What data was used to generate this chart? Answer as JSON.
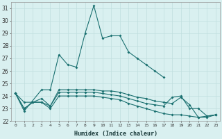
{
  "xlabel": "Humidex (Indice chaleur)",
  "x": [
    0,
    1,
    2,
    3,
    4,
    5,
    6,
    7,
    8,
    9,
    10,
    11,
    12,
    13,
    14,
    15,
    16,
    17,
    18,
    19,
    20,
    21,
    22,
    23
  ],
  "line1": [
    24.2,
    22.8,
    null,
    24.5,
    24.5,
    27.3,
    26.5,
    26.3,
    29.0,
    31.2,
    28.6,
    28.8,
    28.8,
    27.5,
    27.0,
    26.5,
    26.0,
    25.5,
    null,
    null,
    null,
    null,
    null,
    null
  ],
  "line2": [
    24.2,
    23.0,
    23.5,
    23.5,
    23.2,
    24.5,
    24.5,
    24.5,
    24.5,
    24.5,
    24.4,
    24.4,
    24.3,
    24.1,
    23.9,
    23.8,
    23.6,
    23.5,
    23.4,
    23.9,
    23.3,
    22.3,
    22.4,
    22.5
  ],
  "line3": [
    24.2,
    23.5,
    23.5,
    23.8,
    23.2,
    24.3,
    24.3,
    24.3,
    24.3,
    24.3,
    24.2,
    24.1,
    24.0,
    23.8,
    23.6,
    23.4,
    23.3,
    23.2,
    23.9,
    24.0,
    23.0,
    23.0,
    22.4,
    22.5
  ],
  "line4": [
    24.2,
    23.0,
    23.5,
    23.5,
    23.0,
    24.0,
    24.0,
    24.0,
    24.0,
    24.0,
    23.9,
    23.8,
    23.7,
    23.4,
    23.2,
    23.0,
    22.8,
    22.6,
    22.5,
    22.5,
    22.4,
    22.3,
    22.3,
    22.5
  ],
  "ylim": [
    22,
    31.5
  ],
  "yticks": [
    22,
    23,
    24,
    25,
    26,
    27,
    28,
    29,
    30,
    31
  ],
  "bg_color": "#d9f0f0",
  "line_color": "#1a7070",
  "grid_color": "#c0dede"
}
